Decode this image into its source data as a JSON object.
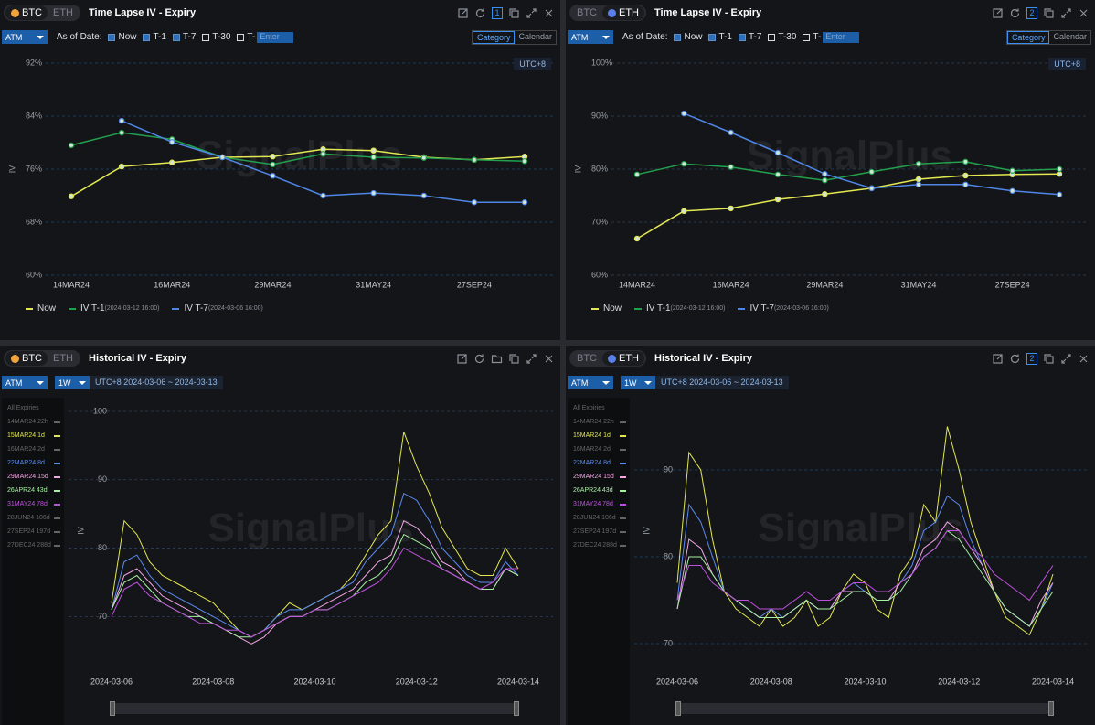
{
  "watermark": "SignalPlus",
  "panels": [
    {
      "coins": [
        "BTC",
        "ETH"
      ],
      "active": 0,
      "title": "Time Lapse IV - Expiry",
      "badge": "1",
      "mode": "ATM",
      "as_of": "As of Date:",
      "checks": [
        {
          "label": "Now",
          "checked": true
        },
        {
          "label": "T-1",
          "checked": true
        },
        {
          "label": "T-7",
          "checked": true
        },
        {
          "label": "T-30",
          "checked": false
        },
        {
          "label": "T-",
          "checked": false
        }
      ],
      "input": "Enter",
      "views": [
        "Category",
        "Calendar"
      ],
      "timezone": "UTC+8"
    },
    {
      "coins": [
        "BTC",
        "ETH"
      ],
      "active": 1,
      "title": "Time Lapse IV - Expiry",
      "badge": "2",
      "mode": "ATM",
      "as_of": "As of Date:",
      "checks": [
        {
          "label": "Now",
          "checked": true
        },
        {
          "label": "T-1",
          "checked": true
        },
        {
          "label": "T-7",
          "checked": true
        },
        {
          "label": "T-30",
          "checked": false
        },
        {
          "label": "T-",
          "checked": false
        }
      ],
      "input": "Enter",
      "views": [
        "Category",
        "Calendar"
      ],
      "timezone": "UTC+8"
    },
    {
      "coins": [
        "BTC",
        "ETH"
      ],
      "active": 0,
      "title": "Historical IV - Expiry",
      "mode": "ATM",
      "period": "1W",
      "range": "UTC+8 2024-03-06 ~ 2024-03-13",
      "legend_title": "All Expiries"
    },
    {
      "coins": [
        "BTC",
        "ETH"
      ],
      "active": 1,
      "title": "Historical IV - Expiry",
      "badge": "2",
      "mode": "ATM",
      "period": "1W",
      "range": "UTC+8 2024-03-06 ~ 2024-03-13",
      "legend_title": "All Expiries"
    }
  ],
  "chart_data": [
    {
      "type": "line",
      "y_label": "IV",
      "grid": true,
      "categories": [
        "14MAR24",
        null,
        "16MAR24",
        null,
        "29MAR24",
        null,
        "31MAY24",
        null,
        "27SEP24",
        null
      ],
      "ylim": [
        60,
        92
      ],
      "yticks": [
        {
          "value": 60,
          "label": "60%"
        },
        {
          "value": 68,
          "label": "68%"
        },
        {
          "value": 76,
          "label": "76%"
        },
        {
          "value": 84,
          "label": "84%"
        },
        {
          "value": 92,
          "label": "92%"
        }
      ],
      "series": [
        {
          "name": "Now",
          "color": "#e3e852",
          "values": [
            71.9,
            76.4,
            77.0,
            77.8,
            77.9,
            79.0,
            78.8,
            77.8,
            77.4,
            77.9
          ]
        },
        {
          "name": "IV T-1",
          "timestamp": "(2024-03-12 16:00)",
          "color": "#23a04c",
          "values": [
            79.6,
            81.5,
            80.5,
            77.8,
            76.7,
            78.3,
            77.8,
            77.7,
            77.4,
            77.2
          ]
        },
        {
          "name": "IV T-7",
          "timestamp": "(2024-03-06 16:00)",
          "color": "#4f86e6",
          "values": [
            null,
            83.3,
            80.1,
            77.8,
            75.0,
            72.0,
            72.4,
            72.0,
            71.0,
            71.0
          ]
        }
      ]
    },
    {
      "type": "line",
      "y_label": "IV",
      "grid": true,
      "categories": [
        "14MAR24",
        null,
        "16MAR24",
        null,
        "29MAR24",
        null,
        "31MAY24",
        null,
        "27SEP24",
        null
      ],
      "ylim": [
        60,
        100
      ],
      "yticks": [
        {
          "value": 60,
          "label": "60%"
        },
        {
          "value": 70,
          "label": "70%"
        },
        {
          "value": 80,
          "label": "80%"
        },
        {
          "value": 90,
          "label": "90%"
        },
        {
          "value": 100,
          "label": "100%"
        }
      ],
      "series": [
        {
          "name": "Now",
          "color": "#e3e852",
          "values": [
            66.9,
            72.1,
            72.6,
            74.3,
            75.3,
            76.4,
            78.1,
            78.8,
            79.0,
            79.1
          ]
        },
        {
          "name": "IV T-1",
          "timestamp": "(2024-03-12 16:00)",
          "color": "#23a04c",
          "values": [
            79.0,
            81.0,
            80.4,
            79.0,
            77.9,
            79.5,
            81.0,
            81.4,
            79.7,
            80.0
          ]
        },
        {
          "name": "IV T-7",
          "timestamp": "(2024-03-06 16:00)",
          "color": "#4f86e6",
          "values": [
            null,
            90.5,
            86.9,
            83.1,
            79.1,
            76.4,
            77.1,
            77.1,
            75.9,
            75.2
          ]
        }
      ]
    },
    {
      "type": "line",
      "y_label": "IV",
      "grid": true,
      "categories": [
        "2024-03-06",
        null,
        null,
        null,
        null,
        null,
        null,
        null,
        "2024-03-08",
        null,
        null,
        null,
        null,
        null,
        null,
        null,
        "2024-03-10",
        null,
        null,
        null,
        null,
        null,
        null,
        null,
        "2024-03-12",
        null,
        null,
        null,
        null,
        null,
        null,
        null,
        "2024-03-14"
      ],
      "ylim": [
        63.5,
        101.6
      ],
      "yticks": [
        70,
        80,
        90,
        100
      ],
      "series": [
        {
          "name": "14MAR24 22h",
          "color": "#666666",
          "hidden": true
        },
        {
          "name": "15MAR24 1d",
          "color": "#e3e852",
          "values": [
            72,
            84,
            82,
            78,
            76,
            75,
            74,
            73,
            72,
            70,
            68,
            67,
            68,
            70,
            72,
            71,
            72,
            73,
            74,
            76,
            79,
            82,
            84,
            97,
            92,
            88,
            83,
            80,
            77,
            76,
            76,
            80,
            77
          ]
        },
        {
          "name": "16MAR24 2d",
          "color": "#666666",
          "hidden": true
        },
        {
          "name": "22MAR24 8d",
          "color": "#5b8bf0",
          "values": [
            71,
            78,
            79,
            76,
            74,
            73,
            72,
            71,
            70,
            69,
            68,
            67,
            68,
            70,
            71,
            71,
            72,
            73,
            74,
            75,
            78,
            80,
            82,
            88,
            87,
            84,
            80,
            78,
            76,
            75,
            75,
            78,
            76
          ]
        },
        {
          "name": "29MAR24 15d",
          "color": "#f2a6e4",
          "values": [
            71,
            76,
            77,
            75,
            73,
            72,
            71,
            70,
            69,
            68,
            67,
            66,
            67,
            69,
            70,
            70,
            71,
            72,
            73,
            74,
            76,
            78,
            79,
            84,
            83,
            81,
            78,
            77,
            75,
            74,
            74,
            77,
            76
          ]
        },
        {
          "name": "26APR24 43d",
          "color": "#a8f0a4",
          "values": [
            71,
            75,
            76,
            74,
            72,
            71,
            70,
            70,
            69,
            68,
            67,
            67,
            68,
            69,
            70,
            70,
            71,
            71,
            72,
            73,
            75,
            76,
            78,
            82,
            81,
            80,
            77,
            76,
            75,
            74,
            74,
            77,
            76
          ]
        },
        {
          "name": "31MAY24 78d",
          "color": "#c050e0",
          "values": [
            70,
            74,
            75,
            73,
            72,
            71,
            70,
            69,
            69,
            68,
            68,
            67,
            68,
            69,
            70,
            70,
            71,
            71,
            72,
            73,
            74,
            75,
            77,
            80,
            79,
            78,
            77,
            76,
            75,
            74,
            75,
            77,
            77
          ]
        },
        {
          "name": "28JUN24 106d",
          "color": "#666666",
          "hidden": true
        },
        {
          "name": "27SEP24 197d",
          "color": "#666666",
          "hidden": true
        },
        {
          "name": "27DEC24 288d",
          "color": "#666666",
          "hidden": true
        }
      ]
    },
    {
      "type": "line",
      "y_label": "IV",
      "grid": true,
      "categories": [
        "2024-03-06",
        null,
        null,
        null,
        null,
        null,
        null,
        null,
        "2024-03-08",
        null,
        null,
        null,
        null,
        null,
        null,
        null,
        "2024-03-10",
        null,
        null,
        null,
        null,
        null,
        null,
        null,
        "2024-03-12",
        null,
        null,
        null,
        null,
        null,
        null,
        null,
        "2024-03-14"
      ],
      "ylim": [
        68,
        98
      ],
      "yticks": [
        70,
        80,
        90
      ],
      "series": [
        {
          "name": "14MAR24 22h",
          "color": "#666666",
          "hidden": true
        },
        {
          "name": "15MAR24 1d",
          "color": "#e3e852",
          "values": [
            77,
            92,
            90,
            82,
            76,
            74,
            73,
            72,
            74,
            72,
            73,
            75,
            72,
            73,
            76,
            78,
            77,
            74,
            73,
            78,
            80,
            86,
            84,
            95,
            90,
            84,
            80,
            76,
            73,
            72,
            71,
            74,
            78
          ]
        },
        {
          "name": "16MAR24 2d",
          "color": "#666666",
          "hidden": true
        },
        {
          "name": "22MAR24 8d",
          "color": "#5b8bf0",
          "values": [
            75,
            86,
            84,
            80,
            76,
            75,
            74,
            73,
            74,
            73,
            74,
            75,
            74,
            74,
            76,
            77,
            76,
            75,
            75,
            77,
            79,
            83,
            84,
            87,
            86,
            82,
            79,
            76,
            74,
            73,
            72,
            74,
            77
          ]
        },
        {
          "name": "29MAR24 15d",
          "color": "#f2a6e4",
          "values": [
            74,
            82,
            81,
            78,
            76,
            75,
            74,
            73,
            73,
            73,
            74,
            75,
            74,
            74,
            76,
            76,
            76,
            75,
            75,
            77,
            78,
            81,
            82,
            84,
            83,
            81,
            79,
            76,
            74,
            73,
            72,
            75,
            77
          ]
        },
        {
          "name": "26APR24 43d",
          "color": "#a8f0a4",
          "values": [
            74,
            80,
            80,
            78,
            76,
            75,
            74,
            73,
            73,
            73,
            74,
            75,
            74,
            74,
            75,
            76,
            76,
            75,
            75,
            76,
            78,
            80,
            81,
            83,
            82,
            80,
            78,
            76,
            74,
            73,
            72,
            74,
            76
          ]
        },
        {
          "name": "31MAY24 78d",
          "color": "#c050e0",
          "values": [
            75,
            79,
            79,
            77,
            76,
            75,
            75,
            74,
            74,
            74,
            75,
            76,
            75,
            75,
            76,
            77,
            77,
            76,
            76,
            77,
            78,
            80,
            81,
            83,
            83,
            81,
            80,
            78,
            77,
            76,
            75,
            77,
            79
          ]
        },
        {
          "name": "28JUN24 106d",
          "color": "#666666",
          "hidden": true
        },
        {
          "name": "27SEP24 197d",
          "color": "#666666",
          "hidden": true
        },
        {
          "name": "27DEC24 288d",
          "color": "#666666",
          "hidden": true
        }
      ]
    }
  ]
}
